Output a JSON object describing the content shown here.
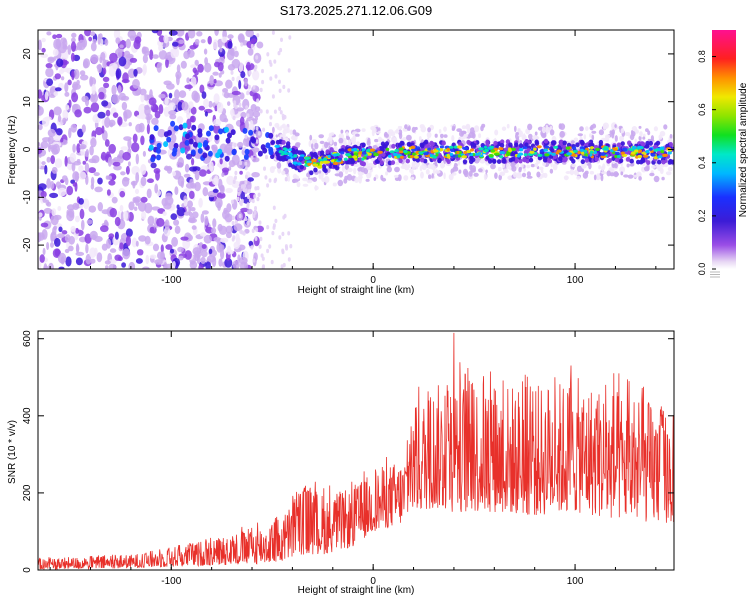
{
  "title": "S173.2025.271.12.06.G09",
  "chart_data": [
    {
      "type": "heatmap",
      "xlabel": "Height of straight line (km)",
      "ylabel": "Frequency (Hz)",
      "xlim": [
        -166,
        149
      ],
      "ylim": [
        -25,
        25
      ],
      "x_ticks": [
        -100,
        0,
        100
      ],
      "y_ticks": [
        20,
        10,
        0,
        -10,
        -20
      ],
      "colorbar": {
        "label": "Normalized spectral amplitude",
        "range": [
          0,
          0.9
        ],
        "ticks": [
          0.0,
          0.2,
          0.4,
          0.6,
          0.8
        ]
      },
      "ridge": {
        "description_points_x": [
          -166,
          -120,
          -100,
          -80,
          -55,
          -45,
          -38,
          -30,
          -20,
          -10,
          0,
          20,
          40,
          60,
          80,
          100,
          120,
          149
        ],
        "frequency": [
          0,
          0.5,
          2,
          1,
          1,
          0,
          -2,
          -3,
          -2,
          -1,
          -1,
          -0.5,
          -0.5,
          -0.5,
          -0.3,
          -0.5,
          -0.5,
          -0.8
        ]
      }
    },
    {
      "type": "line",
      "xlabel": "Height of straight line (km)",
      "ylabel": "SNR (10 * v/v)",
      "xlim": [
        -166,
        149
      ],
      "ylim": [
        0,
        620
      ],
      "x_ticks": [
        -100,
        0,
        100
      ],
      "y_ticks": [
        0,
        200,
        400,
        600
      ],
      "color": "#e8302a",
      "envelope": {
        "x": [
          -166,
          -120,
          -90,
          -60,
          -45,
          -35,
          -25,
          -10,
          0,
          15,
          20,
          30,
          40,
          60,
          80,
          100,
          120,
          149
        ],
        "upper": [
          30,
          40,
          70,
          110,
          140,
          230,
          200,
          210,
          260,
          290,
          420,
          480,
          500,
          490,
          480,
          500,
          470,
          420
        ],
        "lower": [
          0,
          5,
          10,
          15,
          20,
          40,
          40,
          60,
          100,
          120,
          150,
          160,
          150,
          150,
          140,
          150,
          130,
          120
        ]
      }
    }
  ]
}
